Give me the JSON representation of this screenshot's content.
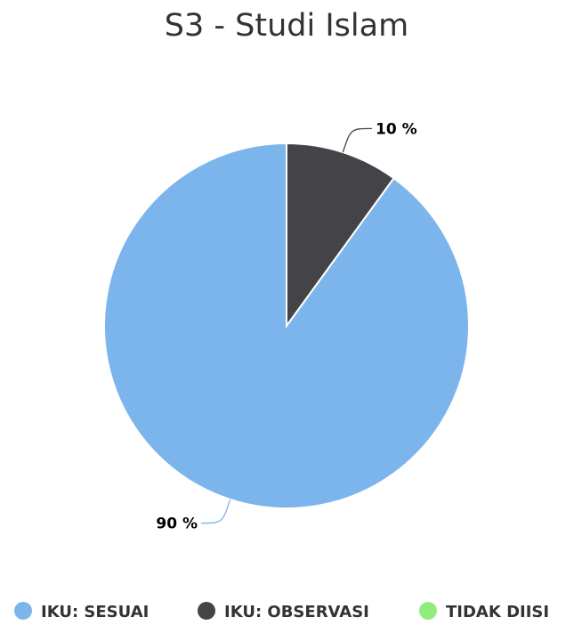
{
  "chart_data": {
    "type": "pie",
    "title": "S3 - Studi Islam",
    "series": [
      {
        "name": "IKU: SESUAI",
        "value": 90,
        "label": "90 %",
        "color": "#7cb5ec"
      },
      {
        "name": "IKU: OBSERVASI",
        "value": 10,
        "label": "10 %",
        "color": "#434348"
      },
      {
        "name": "TIDAK DIISI",
        "value": 0,
        "label": "",
        "color": "#90ed7d"
      }
    ],
    "legend_position": "bottom"
  }
}
